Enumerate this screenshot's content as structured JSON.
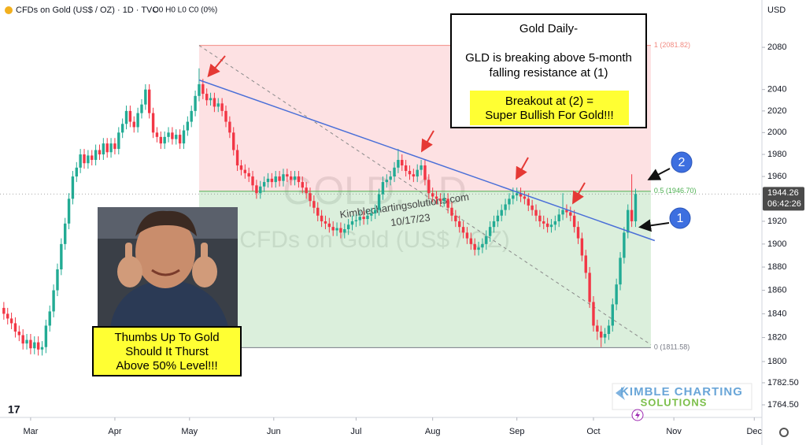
{
  "header": {
    "symbol": "CFDs on Gold (US$ / OZ) · 1D · TVC",
    "ohlc": "O0 H0 L0 C0 (0%)",
    "currency": "USD"
  },
  "chart_data": {
    "type": "candlestick",
    "log_scale": true,
    "ylim": [
      1754.3,
      2125.8
    ],
    "yticks": [
      2080,
      2040,
      2020,
      2000,
      1980,
      1960,
      1920,
      1900,
      1880,
      1860,
      1840,
      1820,
      1800,
      {
        "value": 1782.5,
        "label": "1782.50"
      },
      {
        "value": 1764.5,
        "label": "1764.50"
      }
    ],
    "xlim": [
      -1,
      198
    ],
    "xticks": [
      {
        "value": 7,
        "label": "Mar"
      },
      {
        "value": 29,
        "label": "Apr"
      },
      {
        "value": 48.5,
        "label": "May"
      },
      {
        "value": 70.5,
        "label": "Jun"
      },
      {
        "value": 92,
        "label": "Jul"
      },
      {
        "value": 112,
        "label": "Aug"
      },
      {
        "value": 134,
        "label": "Sep"
      },
      {
        "value": 154,
        "label": "Oct"
      },
      {
        "value": 175,
        "label": "Nov"
      },
      {
        "value": 196,
        "label": "Dec"
      }
    ],
    "up_color": "#22ab94",
    "down_color": "#f23645",
    "candles": [
      [
        1845,
        1850,
        1835,
        1840
      ],
      [
        1840,
        1845,
        1831,
        1836
      ],
      [
        1836,
        1841,
        1827,
        1832
      ],
      [
        1832,
        1837,
        1820,
        1825
      ],
      [
        1825,
        1830,
        1817,
        1822
      ],
      [
        1822,
        1827,
        1810,
        1815
      ],
      [
        1815,
        1823,
        1810,
        1818
      ],
      [
        1818,
        1823,
        1806,
        1811
      ],
      [
        1811,
        1821,
        1806,
        1816
      ],
      [
        1816,
        1821,
        1805,
        1810
      ],
      [
        1810,
        1817,
        1805,
        1812
      ],
      [
        1812,
        1835,
        1807,
        1830
      ],
      [
        1830,
        1847,
        1825,
        1842
      ],
      [
        1842,
        1865,
        1837,
        1860
      ],
      [
        1860,
        1883,
        1855,
        1878
      ],
      [
        1878,
        1905,
        1873,
        1900
      ],
      [
        1900,
        1923,
        1895,
        1918
      ],
      [
        1918,
        1945,
        1913,
        1940
      ],
      [
        1940,
        1965,
        1935,
        1960
      ],
      [
        1960,
        1973,
        1955,
        1968
      ],
      [
        1968,
        1985,
        1963,
        1980
      ],
      [
        1980,
        1985,
        1967,
        1972
      ],
      [
        1972,
        1984,
        1967,
        1979
      ],
      [
        1979,
        1984,
        1970,
        1975
      ],
      [
        1975,
        1989,
        1970,
        1984
      ],
      [
        1984,
        1989,
        1975,
        1980
      ],
      [
        1980,
        1995,
        1975,
        1990
      ],
      [
        1990,
        1995,
        1977,
        1982
      ],
      [
        1982,
        1995,
        1977,
        1990
      ],
      [
        1990,
        1995,
        1980,
        1985
      ],
      [
        1985,
        2005,
        1980,
        2000
      ],
      [
        2000,
        2013,
        1995,
        2008
      ],
      [
        2008,
        2025,
        2003,
        2020
      ],
      [
        2020,
        2025,
        2005,
        2010
      ],
      [
        2010,
        2015,
        2000,
        2005
      ],
      [
        2005,
        2023,
        2000,
        2018
      ],
      [
        2018,
        2031,
        2013,
        2026
      ],
      [
        2026,
        2045,
        2021,
        2040
      ],
      [
        2040,
        2045,
        2013,
        2018
      ],
      [
        2018,
        2023,
        1995,
        2000
      ],
      [
        2000,
        2005,
        1991,
        1996
      ],
      [
        1996,
        2001,
        1985,
        1990
      ],
      [
        1990,
        2001,
        1985,
        1996
      ],
      [
        1996,
        2005,
        1991,
        2000
      ],
      [
        2000,
        2005,
        1989,
        1994
      ],
      [
        1994,
        2003,
        1989,
        1998
      ],
      [
        1998,
        2003,
        1985,
        1990
      ],
      [
        1990,
        2007,
        1985,
        2002
      ],
      [
        2002,
        2015,
        1997,
        2010
      ],
      [
        2010,
        2025,
        2005,
        2020
      ],
      [
        2020,
        2039,
        2015,
        2034
      ],
      [
        2034,
        2060,
        2029,
        2045
      ],
      [
        2045,
        2050,
        2031,
        2036
      ],
      [
        2036,
        2041,
        2025,
        2030
      ],
      [
        2030,
        2037,
        2025,
        2032
      ],
      [
        2032,
        2037,
        2019,
        2024
      ],
      [
        2024,
        2032,
        2019,
        2027
      ],
      [
        2027,
        2032,
        2015,
        2020
      ],
      [
        2020,
        2025,
        2005,
        2010
      ],
      [
        2010,
        2015,
        1995,
        2000
      ],
      [
        2000,
        2005,
        1979,
        1984
      ],
      [
        1984,
        1989,
        1965,
        1970
      ],
      [
        1970,
        1975,
        1961,
        1966
      ],
      [
        1966,
        1971,
        1958,
        1963
      ],
      [
        1963,
        1968,
        1955,
        1960
      ],
      [
        1960,
        1965,
        1947,
        1952
      ],
      [
        1952,
        1957,
        1940,
        1945
      ],
      [
        1945,
        1956,
        1940,
        1951
      ],
      [
        1951,
        1960,
        1946,
        1955
      ],
      [
        1955,
        1963,
        1950,
        1958
      ],
      [
        1958,
        1963,
        1950,
        1955
      ],
      [
        1955,
        1965,
        1950,
        1960
      ],
      [
        1960,
        1965,
        1951,
        1956
      ],
      [
        1956,
        1967,
        1951,
        1962
      ],
      [
        1962,
        1967,
        1955,
        1960
      ],
      [
        1960,
        1965,
        1952,
        1957
      ],
      [
        1957,
        1965,
        1952,
        1960
      ],
      [
        1960,
        1965,
        1950,
        1955
      ],
      [
        1955,
        1960,
        1945,
        1950
      ],
      [
        1950,
        1955,
        1940,
        1945
      ],
      [
        1945,
        1950,
        1933,
        1938
      ],
      [
        1938,
        1943,
        1927,
        1932
      ],
      [
        1932,
        1937,
        1920,
        1925
      ],
      [
        1925,
        1930,
        1915,
        1920
      ],
      [
        1920,
        1925,
        1913,
        1918
      ],
      [
        1918,
        1923,
        1910,
        1915
      ],
      [
        1915,
        1920,
        1907,
        1912
      ],
      [
        1912,
        1919,
        1907,
        1914
      ],
      [
        1914,
        1919,
        1905,
        1910
      ],
      [
        1910,
        1918,
        1905,
        1913
      ],
      [
        1913,
        1922,
        1908,
        1917
      ],
      [
        1917,
        1925,
        1912,
        1920
      ],
      [
        1920,
        1926,
        1915,
        1921
      ],
      [
        1921,
        1929,
        1916,
        1924
      ],
      [
        1924,
        1929,
        1917,
        1922
      ],
      [
        1922,
        1930,
        1917,
        1925
      ],
      [
        1925,
        1932,
        1920,
        1927
      ],
      [
        1927,
        1935,
        1922,
        1930
      ],
      [
        1930,
        1949,
        1925,
        1944
      ],
      [
        1944,
        1960,
        1939,
        1955
      ],
      [
        1955,
        1962,
        1950,
        1957
      ],
      [
        1957,
        1965,
        1952,
        1960
      ],
      [
        1960,
        1973,
        1955,
        1968
      ],
      [
        1968,
        1985,
        1963,
        1975
      ],
      [
        1975,
        1980,
        1965,
        1970
      ],
      [
        1970,
        1975,
        1960,
        1965
      ],
      [
        1965,
        1970,
        1957,
        1962
      ],
      [
        1962,
        1967,
        1955,
        1960
      ],
      [
        1960,
        1971,
        1955,
        1966
      ],
      [
        1966,
        1975,
        1961,
        1970
      ],
      [
        1970,
        1975,
        1952,
        1957
      ],
      [
        1957,
        1962,
        1940,
        1945
      ],
      [
        1945,
        1950,
        1937,
        1942
      ],
      [
        1942,
        1947,
        1935,
        1940
      ],
      [
        1940,
        1945,
        1933,
        1938
      ],
      [
        1938,
        1945,
        1933,
        1940
      ],
      [
        1940,
        1945,
        1927,
        1932
      ],
      [
        1932,
        1937,
        1920,
        1925
      ],
      [
        1925,
        1930,
        1915,
        1920
      ],
      [
        1920,
        1925,
        1910,
        1915
      ],
      [
        1915,
        1920,
        1905,
        1910
      ],
      [
        1910,
        1915,
        1900,
        1905
      ],
      [
        1905,
        1910,
        1895,
        1900
      ],
      [
        1900,
        1905,
        1890,
        1895
      ],
      [
        1895,
        1902,
        1890,
        1897
      ],
      [
        1897,
        1905,
        1892,
        1900
      ],
      [
        1900,
        1912,
        1895,
        1907
      ],
      [
        1907,
        1920,
        1902,
        1915
      ],
      [
        1915,
        1925,
        1910,
        1920
      ],
      [
        1920,
        1930,
        1915,
        1925
      ],
      [
        1925,
        1935,
        1920,
        1930
      ],
      [
        1930,
        1940,
        1925,
        1935
      ],
      [
        1935,
        1945,
        1930,
        1940
      ],
      [
        1940,
        1950,
        1935,
        1943
      ],
      [
        1943,
        1950,
        1938,
        1945
      ],
      [
        1945,
        1950,
        1937,
        1942
      ],
      [
        1942,
        1947,
        1935,
        1940
      ],
      [
        1940,
        1945,
        1929,
        1934
      ],
      [
        1934,
        1939,
        1925,
        1930
      ],
      [
        1930,
        1935,
        1920,
        1925
      ],
      [
        1925,
        1930,
        1915,
        1920
      ],
      [
        1920,
        1925,
        1913,
        1918
      ],
      [
        1918,
        1923,
        1910,
        1915
      ],
      [
        1915,
        1922,
        1910,
        1917
      ],
      [
        1917,
        1925,
        1912,
        1920
      ],
      [
        1920,
        1931,
        1915,
        1926
      ],
      [
        1926,
        1945,
        1921,
        1930
      ],
      [
        1930,
        1935,
        1923,
        1928
      ],
      [
        1928,
        1933,
        1920,
        1925
      ],
      [
        1925,
        1930,
        1910,
        1915
      ],
      [
        1915,
        1920,
        1900,
        1905
      ],
      [
        1905,
        1910,
        1885,
        1890
      ],
      [
        1890,
        1895,
        1870,
        1875
      ],
      [
        1875,
        1880,
        1845,
        1850
      ],
      [
        1850,
        1855,
        1825,
        1830
      ],
      [
        1830,
        1835,
        1818,
        1825
      ],
      [
        1825,
        1830,
        1812,
        1820
      ],
      [
        1820,
        1828,
        1815,
        1823
      ],
      [
        1823,
        1835,
        1818,
        1830
      ],
      [
        1830,
        1853,
        1825,
        1848
      ],
      [
        1848,
        1870,
        1843,
        1865
      ],
      [
        1865,
        1893,
        1860,
        1888
      ],
      [
        1888,
        1915,
        1883,
        1910
      ],
      [
        1910,
        1935,
        1905,
        1930
      ],
      [
        1930,
        1962,
        1915,
        1920
      ],
      [
        1920,
        1949,
        1915,
        1944.26
      ]
    ],
    "last_price": 1944.26,
    "countdown": "06:42:26",
    "fib": {
      "x": [
        51,
        169
      ],
      "levels": [
        {
          "value": 2081.82,
          "label": "1 (2081.82)"
        },
        {
          "value": 1946.7,
          "label": "0.5 (1946.70)"
        },
        {
          "value": 1811.58,
          "label": "0 (1811.58)"
        }
      ]
    },
    "trendline": {
      "x": [
        51,
        170
      ],
      "y": [
        2049,
        1903
      ],
      "color": "#4a6fd8"
    },
    "guide_line": {
      "x": [
        51,
        169
      ],
      "y": [
        2081.82,
        1814
      ]
    },
    "watermark": [
      "GOLD, 1D",
      "CFDs on Gold (US$ / OZ)"
    ],
    "source": {
      "site": "Kimblechartingsolutions.com",
      "date": "10/17/23"
    }
  },
  "annotations": {
    "headline": "Gold Daily-",
    "note": [
      "GLD is breaking above 5-month",
      "falling resistance at (1)"
    ],
    "highlight": [
      "Breakout at (2) =",
      "Super Bullish For Gold!!!"
    ],
    "caption": [
      "Thumbs Up To Gold",
      "Should It Thurst",
      "Above 50% Level!!!"
    ],
    "markers": [
      "1",
      "2"
    ]
  },
  "logo": {
    "line1": "KIMBLE CHARTING",
    "line2": "SOLUTIONS"
  }
}
